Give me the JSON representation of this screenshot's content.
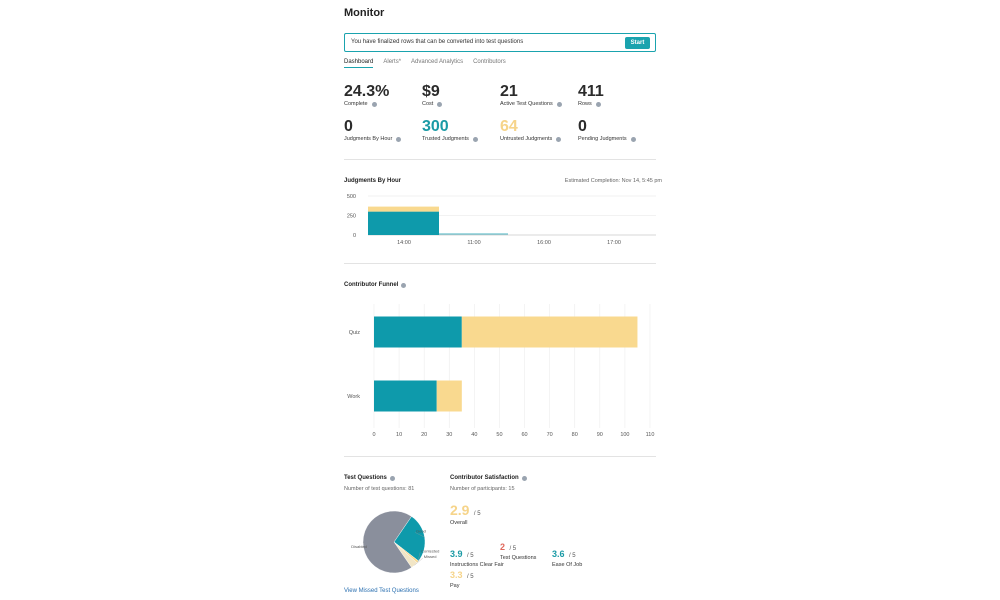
{
  "header": {
    "title": "Monitor"
  },
  "banner": {
    "text": "You have finalized rows that can be converted into test questions",
    "button_label": "Start"
  },
  "tabs": [
    {
      "label": "Dashboard",
      "active": true
    },
    {
      "label": "Alerts*",
      "active": false
    },
    {
      "label": "Advanced Analytics",
      "active": false
    },
    {
      "label": "Contributors",
      "active": false
    }
  ],
  "stats": [
    {
      "value": "24.3%",
      "label": "Complete",
      "color": "#2b2b2b"
    },
    {
      "value": "$9",
      "label": "Cost",
      "color": "#2b2b2b"
    },
    {
      "value": "21",
      "label": "Active Test Questions",
      "color": "#2b2b2b"
    },
    {
      "value": "411",
      "label": "Rows",
      "color": "#2b2b2b"
    },
    {
      "value": "0",
      "label": "Judgments By Hour",
      "color": "#2b2b2b"
    },
    {
      "value": "300",
      "label": "Trusted Judgments",
      "color": "#1a9aa5"
    },
    {
      "value": "64",
      "label": "Untrusted Judgments",
      "color": "#f6d48a"
    },
    {
      "value": "0",
      "label": "Pending Judgments",
      "color": "#2b2b2b"
    }
  ],
  "judgments_chart": {
    "title": "Judgments By Hour",
    "estimated_completion": "Estimated Completion: Nov 14, 5:45 pm",
    "chart_data": {
      "type": "bar",
      "y_ticks": [
        "500",
        "250",
        "0"
      ],
      "x_ticks": [
        "14:00",
        "11:00",
        "16:00",
        "17:00"
      ],
      "ylim": [
        0,
        500
      ],
      "series": [
        {
          "values": [
            300
          ],
          "color": "#0e9aab"
        },
        {
          "values": [
            64
          ],
          "color": "#f9d98f"
        }
      ]
    }
  },
  "funnel_chart": {
    "title": "Contributor Funnel",
    "chart_data": {
      "type": "bar",
      "categories": [
        "Quiz",
        "Work"
      ],
      "x_ticks": [
        "0",
        "10",
        "20",
        "30",
        "40",
        "50",
        "60",
        "70",
        "80",
        "90",
        "100",
        "110"
      ],
      "xlim": [
        0,
        110
      ],
      "series": [
        {
          "values": [
            35,
            25
          ],
          "color": "#0e9aab"
        },
        {
          "values": [
            70,
            10
          ],
          "color": "#f9d98f"
        }
      ]
    }
  },
  "test_questions": {
    "title": "Test Questions",
    "count_text": "Number of test questions: 81",
    "chart_data": {
      "type": "pie",
      "labels": [
        "Good",
        "Contested",
        "Missed",
        "Disabled"
      ],
      "values": [
        21,
        1,
        3,
        56
      ],
      "colors": [
        "#0e9aab",
        "#f9d98f",
        "#f2e6c6",
        "#8a8f9c"
      ]
    },
    "link": "View Missed Test Questions"
  },
  "satisfaction": {
    "title": "Contributor Satisfaction",
    "participants_text": "Number of participants: 15",
    "overall": {
      "value": "2.9",
      "denom": "/ 5",
      "label": "Overall",
      "color": "#f6d48a"
    },
    "items": [
      {
        "value": "3.9",
        "denom": "/ 5",
        "label": "Instructions Clear Fair",
        "color": "#1a9aa5"
      },
      {
        "value": "2",
        "denom": "/ 5",
        "label": "Test Questions",
        "color": "#e0685c"
      },
      {
        "value": "3.6",
        "denom": "/ 5",
        "label": "Ease Of Job",
        "color": "#1a9aa5"
      },
      {
        "value": "3.3",
        "denom": "/ 5",
        "label": "Pay",
        "color": "#f6d48a"
      }
    ]
  }
}
